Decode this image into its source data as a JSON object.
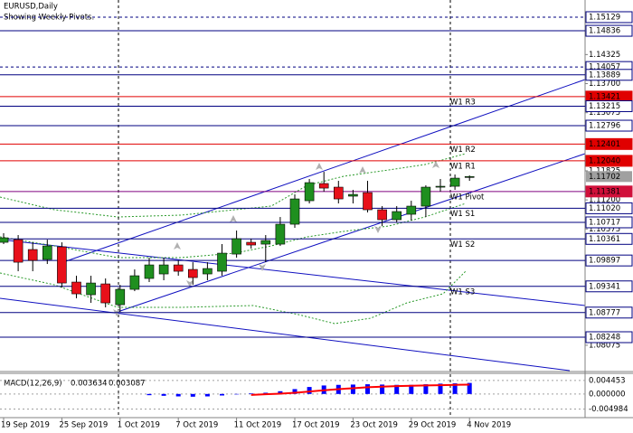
{
  "chart_data": [
    {
      "type": "candlestick",
      "title": "EURUSD,Daily",
      "subtitle": "Showing Weekly Pivots.",
      "categories": [
        "19 Sep 2019",
        null,
        null,
        null,
        "25 Sep 2019",
        null,
        null,
        null,
        "1 Oct 2019",
        null,
        null,
        null,
        "7 Oct 2019",
        null,
        null,
        null,
        "11 Oct 2019",
        null,
        null,
        null,
        "17 Oct 2019",
        null,
        null,
        null,
        "23 Oct 2019",
        null,
        null,
        null,
        "29 Oct 2019",
        null,
        null,
        null,
        "4 Nov 2019"
      ],
      "open": [
        1.10288,
        1.10346,
        1.10133,
        1.09919,
        1.10191,
        1.09433,
        1.09161,
        1.09394,
        1.08947,
        1.09277,
        1.09511,
        1.09608,
        1.09802,
        1.09705,
        1.09608,
        1.09666,
        1.10035,
        1.10288,
        1.10249,
        1.10249,
        1.10677,
        1.11182,
        1.11552,
        1.11474,
        1.1128,
        1.11357,
        1.10988,
        1.10774,
        1.10891,
        1.11066,
        1.11474,
        1.11493,
        1.1169
      ],
      "high": [
        1.10483,
        1.10444,
        1.10288,
        1.10346,
        1.10288,
        1.09569,
        1.09569,
        1.09511,
        1.09374,
        1.09705,
        1.09958,
        1.09958,
        1.09899,
        1.0986,
        1.0986,
        1.10249,
        1.10541,
        1.10366,
        1.10444,
        1.10832,
        1.11318,
        1.11649,
        1.11804,
        1.1161,
        1.11416,
        1.1161,
        1.11066,
        1.11066,
        1.11182,
        1.11513,
        1.11649,
        1.11746,
        1.11727
      ],
      "low": [
        1.10249,
        1.09666,
        1.09666,
        1.09822,
        1.09316,
        1.09083,
        1.08986,
        1.08889,
        1.08791,
        1.09238,
        1.09433,
        1.09472,
        1.09569,
        1.09374,
        1.09472,
        1.09569,
        1.09958,
        1.10152,
        1.0986,
        1.1021,
        1.10599,
        1.11124,
        1.11377,
        1.11124,
        1.11124,
        1.1093,
        1.10638,
        1.10716,
        1.10755,
        1.10832,
        1.11377,
        1.11416,
        1.1161
      ],
      "close": [
        1.10385,
        1.0986,
        1.09899,
        1.1021,
        1.09413,
        1.0918,
        1.09413,
        1.08986,
        1.09277,
        1.09569,
        1.09802,
        1.09802,
        1.09666,
        1.0953,
        1.09724,
        1.10055,
        1.10366,
        1.1023,
        1.10327,
        1.10677,
        1.11221,
        1.11571,
        1.11454,
        1.11221,
        1.11318,
        1.10988,
        1.10774,
        1.10949,
        1.11066,
        1.11474,
        1.11493,
        1.11668,
        1.11702
      ],
      "up_color": "#1f8f1f",
      "down_color": "#e8101a",
      "ylim": [
        1.07529,
        1.15498
      ],
      "yticks": [
        1.14325,
        {
          "value": 1.137,
          "label": "1.13700"
        },
        1.13075,
        1.11825,
        {
          "value": 1.112,
          "label": "1.11200"
        },
        1.10575,
        1.08075
      ],
      "levels": [
        {
          "value": 1.15129,
          "color": "#000080",
          "dashed": true,
          "box": "#ffffff",
          "text_color": "#000000"
        },
        {
          "value": 1.14836,
          "color": "#000080",
          "box": "#ffffff",
          "text_color": "#000000"
        },
        {
          "value": 1.14057,
          "color": "#000080",
          "dashed": true,
          "box": "#ffffff",
          "text_color": "#000000"
        },
        {
          "value": 1.13889,
          "color": "#000080",
          "box": "#ffffff",
          "text_color": "#000000"
        },
        {
          "value": 1.13421,
          "color": "#e00000",
          "box": "#e00000",
          "text_color": "#ffffff",
          "pivot": "W1 R3"
        },
        {
          "value": 1.13215,
          "color": "#000080",
          "box": "#ffffff",
          "text_color": "#000000"
        },
        {
          "value": 1.12796,
          "color": "#000080",
          "box": "#ffffff",
          "text_color": "#000000"
        },
        {
          "value": 1.12401,
          "color": "#e00000",
          "box": "#e00000",
          "text_color": "#ffffff",
          "pivot": "W1 R2"
        },
        {
          "value": 1.1204,
          "label": "1.12040",
          "color": "#e00000",
          "box": "#e00000",
          "text_color": "#ffffff",
          "pivot": "W1 R1"
        },
        {
          "value": 1.11381,
          "color": "#800080",
          "box": "#d0103a",
          "text_color": "#ffffff",
          "pivot": "W1 Pivot"
        },
        {
          "value": 1.1102,
          "label": "1.11020",
          "color": "#000080",
          "box": "#ffffff",
          "text_color": "#000000",
          "pivot": "W1 S1"
        },
        {
          "value": 1.10717,
          "color": "#000080",
          "box": "#ffffff",
          "text_color": "#000000"
        },
        {
          "value": 1.10361,
          "color": "#000080",
          "box": "#ffffff",
          "text_color": "#000000",
          "pivot": "W1 S2"
        },
        {
          "value": 1.09897,
          "color": "#000080",
          "box": "#ffffff",
          "text_color": "#000000"
        },
        {
          "value": 1.09341,
          "color": "#000080",
          "box": "#ffffff",
          "text_color": "#000000",
          "pivot": "W1 S3"
        },
        {
          "value": 1.08777,
          "color": "#000080",
          "box": "#ffffff",
          "text_color": "#000000"
        },
        {
          "value": 1.08248,
          "color": "#000080",
          "box": "#ffffff",
          "text_color": "#000000"
        }
      ],
      "last_price": {
        "value": 1.11702,
        "box": "#a0a0a0",
        "text_color": "#ffffff"
      }
    },
    {
      "type": "macd",
      "title": "MACD(12,26,9)",
      "series": [
        {
          "color": "#0000ff",
          "values": [
            null,
            null,
            null,
            null,
            null,
            null,
            null,
            null,
            null,
            null,
            -0.0004,
            -0.0006,
            -0.0008,
            -0.0009,
            -0.0008,
            -0.0005,
            -0.0001,
            0.0002,
            0.0004,
            0.0009,
            0.0016,
            0.0023,
            0.0028,
            0.003,
            0.0031,
            0.0032,
            0.0031,
            0.003,
            0.003,
            0.0032,
            0.0034,
            0.0035,
            0.003634
          ]
        },
        {
          "color": "#ff0000",
          "values": [
            null,
            null,
            null,
            null,
            null,
            null,
            null,
            null,
            null,
            null,
            null,
            null,
            null,
            null,
            null,
            null,
            null,
            -0.0003,
            -0.0001,
            0.0001,
            0.0004,
            0.0008,
            0.0012,
            0.0016,
            0.0019,
            0.0022,
            0.0024,
            0.0026,
            0.0027,
            0.0028,
            0.0029,
            0.003,
            0.003087
          ]
        }
      ],
      "ylim": [
        -0.0078,
        0.0065
      ],
      "yticks": [
        0.004453,
        {
          "value": 0,
          "label": "0.000000"
        },
        -0.004984
      ]
    }
  ]
}
